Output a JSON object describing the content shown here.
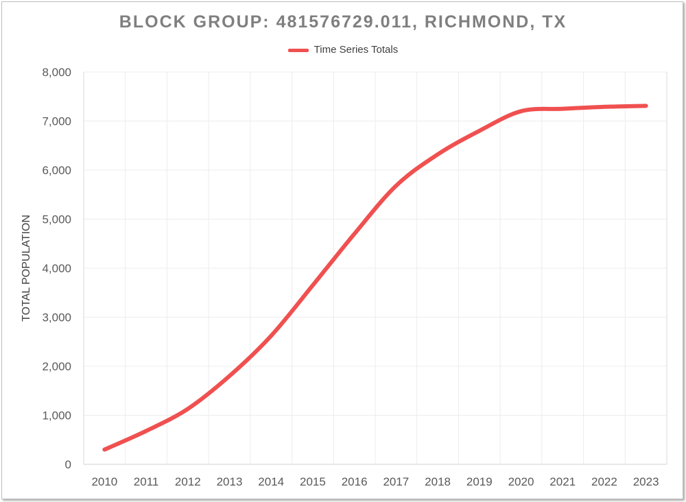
{
  "chart_data": {
    "type": "line",
    "title": "BLOCK GROUP: 481576729.011, RICHMOND, TX",
    "xlabel": "",
    "ylabel": "TOTAL POPULATION",
    "categories": [
      "2010",
      "2011",
      "2012",
      "2013",
      "2014",
      "2015",
      "2016",
      "2017",
      "2018",
      "2019",
      "2020",
      "2021",
      "2022",
      "2023"
    ],
    "series": [
      {
        "name": "Time Series Totals",
        "color": "#f05050",
        "values": [
          300,
          680,
          1130,
          1800,
          2620,
          3650,
          4700,
          5680,
          6320,
          6800,
          7200,
          7250,
          7290,
          7310
        ]
      }
    ],
    "ylim": [
      0,
      8000
    ],
    "yticks": [
      0,
      1000,
      2000,
      3000,
      4000,
      5000,
      6000,
      7000,
      8000
    ],
    "ytick_labels": [
      "0",
      "1,000",
      "2,000",
      "3,000",
      "4,000",
      "5,000",
      "6,000",
      "7,000",
      "8,000"
    ],
    "grid": true,
    "legend_position": "top-center"
  }
}
